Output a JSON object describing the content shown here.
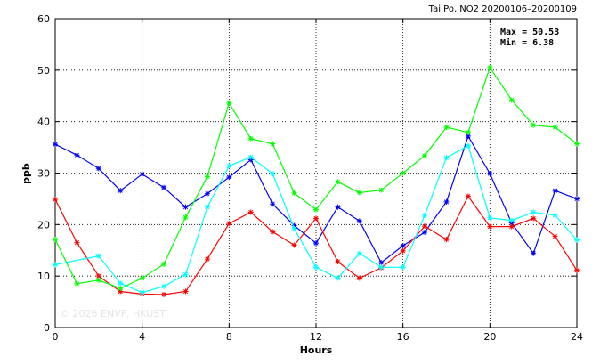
{
  "chart_data": {
    "type": "line",
    "title": "Tai Po, NO2 20200106–20200109",
    "xlabel": "Hours",
    "ylabel": "ppb",
    "xlim": [
      0,
      24
    ],
    "ylim": [
      0,
      60
    ],
    "x_ticks": [
      0,
      4,
      8,
      12,
      16,
      20,
      24
    ],
    "y_ticks": [
      0,
      10,
      20,
      30,
      40,
      50,
      60
    ],
    "grid": true,
    "stats": {
      "max_text": "Max = 50.53",
      "min_text": "Min =  6.38"
    },
    "watermark": "© 2026  ENVF, HKUST",
    "series": [
      {
        "color": "#0000ff",
        "x": [
          0,
          1,
          2,
          3,
          4,
          5,
          6,
          7,
          8,
          9,
          10,
          11,
          12,
          13,
          14,
          15,
          16,
          17,
          18,
          19,
          20,
          21,
          22,
          23,
          24
        ],
        "values": [
          35.6,
          33.5,
          30.9,
          26.6,
          29.8,
          27.2,
          23.4,
          26.0,
          29.2,
          32.6,
          24.0,
          19.8,
          16.4,
          23.4,
          20.7,
          12.6,
          15.9,
          18.5,
          24.4,
          37.2,
          29.9,
          20.3,
          14.4,
          26.6,
          25.0
        ]
      },
      {
        "color": "#ff0000",
        "x": [
          0,
          1,
          2,
          3,
          4,
          5,
          6,
          7,
          8,
          9,
          10,
          11,
          12,
          13,
          14,
          15,
          16,
          17,
          18,
          19,
          20,
          21,
          22,
          23,
          24
        ],
        "values": [
          24.9,
          16.5,
          10.0,
          7.0,
          6.5,
          6.4,
          7.0,
          13.3,
          20.2,
          22.4,
          18.6,
          16.0,
          21.2,
          12.8,
          9.6,
          11.6,
          14.9,
          19.7,
          17.1,
          25.5,
          19.6,
          19.6,
          21.2,
          17.7,
          11.1
        ]
      },
      {
        "color": "#00ff00",
        "x": [
          0,
          1,
          2,
          3,
          4,
          5,
          6,
          7,
          8,
          9,
          10,
          11,
          12,
          13,
          14,
          15,
          16,
          17,
          18,
          19,
          20,
          21,
          22,
          23,
          24
        ],
        "values": [
          17.1,
          8.5,
          9.2,
          7.6,
          9.6,
          12.3,
          21.4,
          29.3,
          43.6,
          36.7,
          35.7,
          26.1,
          22.9,
          28.3,
          26.2,
          26.7,
          30.0,
          33.4,
          38.9,
          37.9,
          50.53,
          44.2,
          39.3,
          38.9,
          35.7
        ]
      },
      {
        "color": "#00ffff",
        "x": [
          0,
          2,
          3,
          4,
          5,
          6,
          7,
          8,
          9,
          10,
          11,
          12,
          13,
          14,
          15,
          16,
          17,
          18,
          19,
          20,
          21,
          22,
          23,
          24
        ],
        "values": [
          12.2,
          13.9,
          8.6,
          6.8,
          8.0,
          10.3,
          23.4,
          31.4,
          33.1,
          29.9,
          19.2,
          11.7,
          9.6,
          14.4,
          11.7,
          11.7,
          21.8,
          33.0,
          35.3,
          21.3,
          20.8,
          22.4,
          21.8,
          17.0
        ]
      }
    ]
  }
}
